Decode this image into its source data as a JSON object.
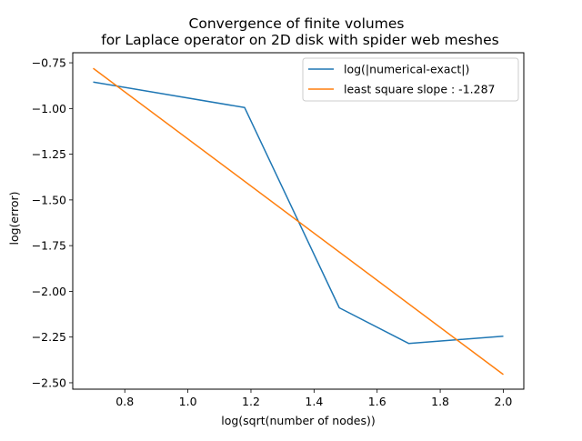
{
  "chart_data": {
    "type": "line",
    "title": [
      "Convergence of finite volumes",
      "for Laplace operator on 2D disk with spider web meshes"
    ],
    "xlabel": "log(sqrt(number of nodes))",
    "ylabel": "log(error)",
    "xlim": [
      0.635,
      2.065
    ],
    "ylim": [
      -2.535,
      -0.695
    ],
    "xticks": [
      0.8,
      1.0,
      1.2,
      1.4,
      1.6,
      1.8,
      2.0
    ],
    "xtick_labels": [
      "0.8",
      "1.0",
      "1.2",
      "1.4",
      "1.6",
      "1.8",
      "2.0"
    ],
    "yticks": [
      -0.75,
      -1.0,
      -1.25,
      -1.5,
      -1.75,
      -2.0,
      -2.25,
      -2.5
    ],
    "ytick_labels": [
      "−0.75",
      "−1.00",
      "−1.25",
      "−1.50",
      "−1.75",
      "−2.00",
      "−2.25",
      "−2.50"
    ],
    "grid": false,
    "legend_position": "upper right",
    "series": [
      {
        "name": "log(|numerical-exact|)",
        "color": "#1f77b4",
        "x": [
          0.7,
          1.18,
          1.48,
          1.7,
          2.0
        ],
        "y": [
          -0.855,
          -0.995,
          -2.09,
          -2.285,
          -2.245
        ]
      },
      {
        "name": "least square slope : -1.287",
        "color": "#ff7f0e",
        "x": [
          0.7,
          2.0
        ],
        "y": [
          -0.78,
          -2.455
        ]
      }
    ]
  }
}
